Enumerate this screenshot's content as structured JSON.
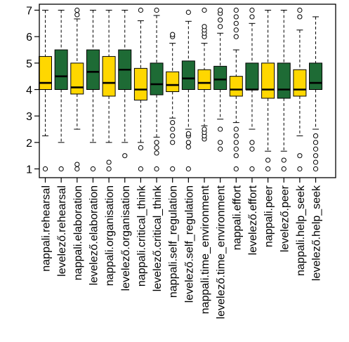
{
  "chart_data": {
    "type": "boxplot",
    "ylim": [
      1,
      7
    ],
    "yticks": [
      1,
      2,
      3,
      4,
      5,
      6,
      7
    ],
    "grid": false,
    "colors": {
      "nappali": "#FFD700",
      "levelezo": "#1E6B35",
      "outline": "#000000"
    },
    "categories": [
      "nappali.rehearsal",
      "levelező.rehearsal",
      "nappali.elaboration",
      "levelező.elaboration",
      "nappali.organisation",
      "levelező.organisation",
      "nappali.critical_think",
      "levelező.critical_think",
      "nappali.self_regulation",
      "levelező.self_regulation",
      "nappali.time_environment",
      "levelező.time_environment",
      "nappali.effort",
      "levelező.effort",
      "nappali.peer",
      "levelező.peer",
      "nappali.help_seek",
      "levelező.help_seek"
    ],
    "boxes": [
      {
        "group": "nappali",
        "low": 2.25,
        "q1": 4.0,
        "median": 4.25,
        "q3": 5.25,
        "high": 7.0,
        "outliers": [
          1.0
        ]
      },
      {
        "group": "levelezo",
        "low": 2.0,
        "q1": 4.0,
        "median": 4.5,
        "q3": 5.5,
        "high": 7.0,
        "outliers": [
          1.0
        ]
      },
      {
        "group": "nappali",
        "low": 2.5,
        "q1": 3.83,
        "median": 4.08,
        "q3": 5.0,
        "high": 6.67,
        "outliers": [
          1.0,
          1.17,
          6.83,
          7.0
        ]
      },
      {
        "group": "levelezo",
        "low": 2.0,
        "q1": 4.0,
        "median": 4.67,
        "q3": 5.5,
        "high": 7.0,
        "outliers": [
          1.0
        ]
      },
      {
        "group": "nappali",
        "low": 2.0,
        "q1": 3.75,
        "median": 4.25,
        "q3": 5.25,
        "high": 7.0,
        "outliers": [
          1.0,
          1.25
        ]
      },
      {
        "group": "levelezo",
        "low": 2.0,
        "q1": 4.0,
        "median": 4.75,
        "q3": 5.5,
        "high": 7.0,
        "outliers": [
          1.5
        ]
      },
      {
        "group": "nappali",
        "low": 2.0,
        "q1": 3.6,
        "median": 4.0,
        "q3": 4.8,
        "high": 6.6,
        "outliers": [
          1.0,
          1.8,
          7.0
        ]
      },
      {
        "group": "levelezo",
        "low": 2.2,
        "q1": 3.8,
        "median": 4.2,
        "q3": 5.0,
        "high": 6.8,
        "outliers": [
          1.0,
          1.6,
          1.8,
          2.0,
          7.0
        ]
      },
      {
        "group": "nappali",
        "low": 2.92,
        "q1": 3.92,
        "median": 4.17,
        "q3": 4.67,
        "high": 5.75,
        "outliers": [
          1.0,
          2.0,
          2.25,
          2.5,
          2.75,
          6.0,
          6.08
        ]
      },
      {
        "group": "levelezo",
        "low": 2.5,
        "q1": 4.0,
        "median": 4.42,
        "q3": 5.08,
        "high": 6.58,
        "outliers": [
          1.0,
          1.83,
          2.0,
          2.25,
          2.33,
          6.92
        ]
      },
      {
        "group": "nappali",
        "low": 2.63,
        "q1": 4.0,
        "median": 4.25,
        "q3": 4.75,
        "high": 5.75,
        "outliers": [
          2.13,
          2.25,
          2.38,
          2.5,
          6.0,
          6.13,
          6.25,
          6.38,
          7.0
        ]
      },
      {
        "group": "levelezo",
        "low": 2.88,
        "q1": 4.0,
        "median": 4.38,
        "q3": 4.88,
        "high": 6.13,
        "outliers": [
          1.75,
          2.0,
          2.5,
          6.38,
          6.63,
          6.88,
          7.0
        ]
      },
      {
        "group": "nappali",
        "low": 2.75,
        "q1": 3.75,
        "median": 4.0,
        "q3": 4.5,
        "high": 5.5,
        "outliers": [
          1.0,
          1.5,
          1.75,
          2.0,
          2.25,
          2.5,
          6.0,
          6.25,
          6.5,
          6.75,
          7.0
        ]
      },
      {
        "group": "levelezo",
        "low": 2.5,
        "q1": 4.0,
        "median": 4.0,
        "q3": 5.0,
        "high": 6.5,
        "outliers": [
          1.0,
          1.75,
          2.0,
          6.75,
          7.0
        ]
      },
      {
        "group": "nappali",
        "low": 1.67,
        "q1": 3.67,
        "median": 4.0,
        "q3": 5.0,
        "high": 7.0,
        "outliers": [
          1.0,
          1.33
        ]
      },
      {
        "group": "levelezo",
        "low": 1.67,
        "q1": 3.67,
        "median": 4.0,
        "q3": 5.0,
        "high": 7.0,
        "outliers": [
          1.0,
          1.33
        ]
      },
      {
        "group": "nappali",
        "low": 2.25,
        "q1": 3.75,
        "median": 4.0,
        "q3": 4.75,
        "high": 6.25,
        "outliers": [
          1.0,
          1.5,
          6.75,
          7.0
        ]
      },
      {
        "group": "levelezo",
        "low": 2.5,
        "q1": 4.0,
        "median": 4.25,
        "q3": 5.0,
        "high": 6.75,
        "outliers": [
          1.0,
          1.25,
          1.5,
          1.75,
          2.0,
          2.25
        ]
      }
    ]
  }
}
